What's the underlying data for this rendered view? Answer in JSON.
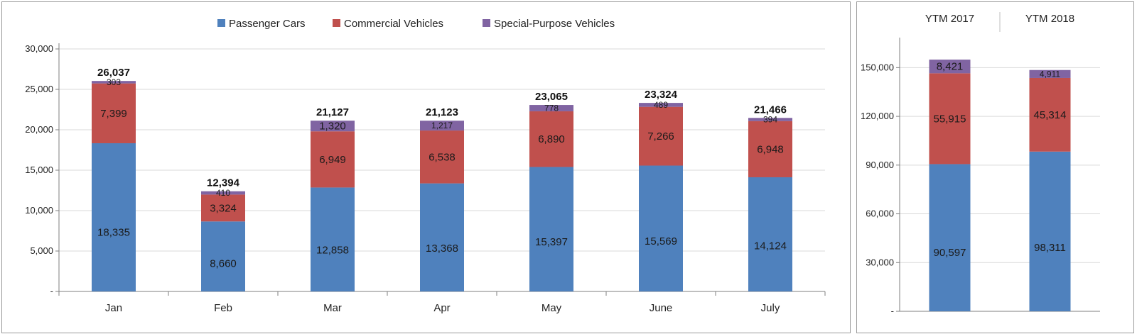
{
  "colors": {
    "passenger": "#4f81bd",
    "commercial": "#c0504d",
    "special": "#8064a2",
    "grid": "#d9d9d9",
    "axis": "#7f7f7f"
  },
  "chart_data": [
    {
      "type": "bar",
      "stacked": true,
      "categories": [
        "Jan",
        "Feb",
        "Mar",
        "Apr",
        "May",
        "June",
        "July"
      ],
      "series": [
        {
          "name": "Passenger Cars",
          "values": [
            18335,
            8660,
            12858,
            13368,
            15397,
            15569,
            14124
          ]
        },
        {
          "name": "Commercial Vehicles",
          "values": [
            7399,
            3324,
            6949,
            6538,
            6890,
            7266,
            6948
          ]
        },
        {
          "name": "Special-Purpose Vehicles",
          "values": [
            303,
            410,
            1320,
            1217,
            778,
            489,
            394
          ]
        }
      ],
      "value_labels": [
        [
          "18,335",
          "8,660",
          "12,858",
          "13,368",
          "15,397",
          "15,569",
          "14,124"
        ],
        [
          "7,399",
          "3,324",
          "6,949",
          "6,538",
          "6,890",
          "7,266",
          "6,948"
        ],
        [
          "303",
          "410",
          "1,320",
          "1,217",
          "778",
          "489",
          "394"
        ]
      ],
      "totals": [
        26037,
        12394,
        21127,
        21123,
        23065,
        23324,
        21466
      ],
      "total_labels": [
        "26,037",
        "12,394",
        "21,127",
        "21,123",
        "23,065",
        "23,324",
        "21,466"
      ],
      "ylim": [
        0,
        30000
      ],
      "yticks": [
        0,
        5000,
        10000,
        15000,
        20000,
        25000,
        30000
      ],
      "ytick_labels": [
        "-",
        "5,000",
        "10,000",
        "15,000",
        "20,000",
        "25,000",
        "30,000"
      ],
      "grid": true,
      "legend": {
        "position": "top",
        "entries": [
          "Passenger Cars",
          "Commercial Vehicles",
          "Special-Purpose Vehicles"
        ]
      }
    },
    {
      "type": "bar",
      "stacked": true,
      "categories": [
        "YTM 2017",
        "YTM 2018"
      ],
      "category_position": "top",
      "series": [
        {
          "name": "Passenger Cars",
          "values": [
            90597,
            98311
          ]
        },
        {
          "name": "Commercial Vehicles",
          "values": [
            55915,
            45314
          ]
        },
        {
          "name": "Special-Purpose Vehicles",
          "values": [
            8421,
            4911
          ]
        }
      ],
      "value_labels": [
        [
          "90,597",
          "98,311"
        ],
        [
          "55,915",
          "45,314"
        ],
        [
          "8,421",
          "4,911"
        ]
      ],
      "ylim": [
        0,
        165000
      ],
      "yticks": [
        0,
        30000,
        60000,
        90000,
        120000,
        150000
      ],
      "ytick_labels": [
        "-",
        "30,000",
        "60,000",
        "90,000",
        "120,000",
        "150,000"
      ],
      "grid": true
    }
  ]
}
